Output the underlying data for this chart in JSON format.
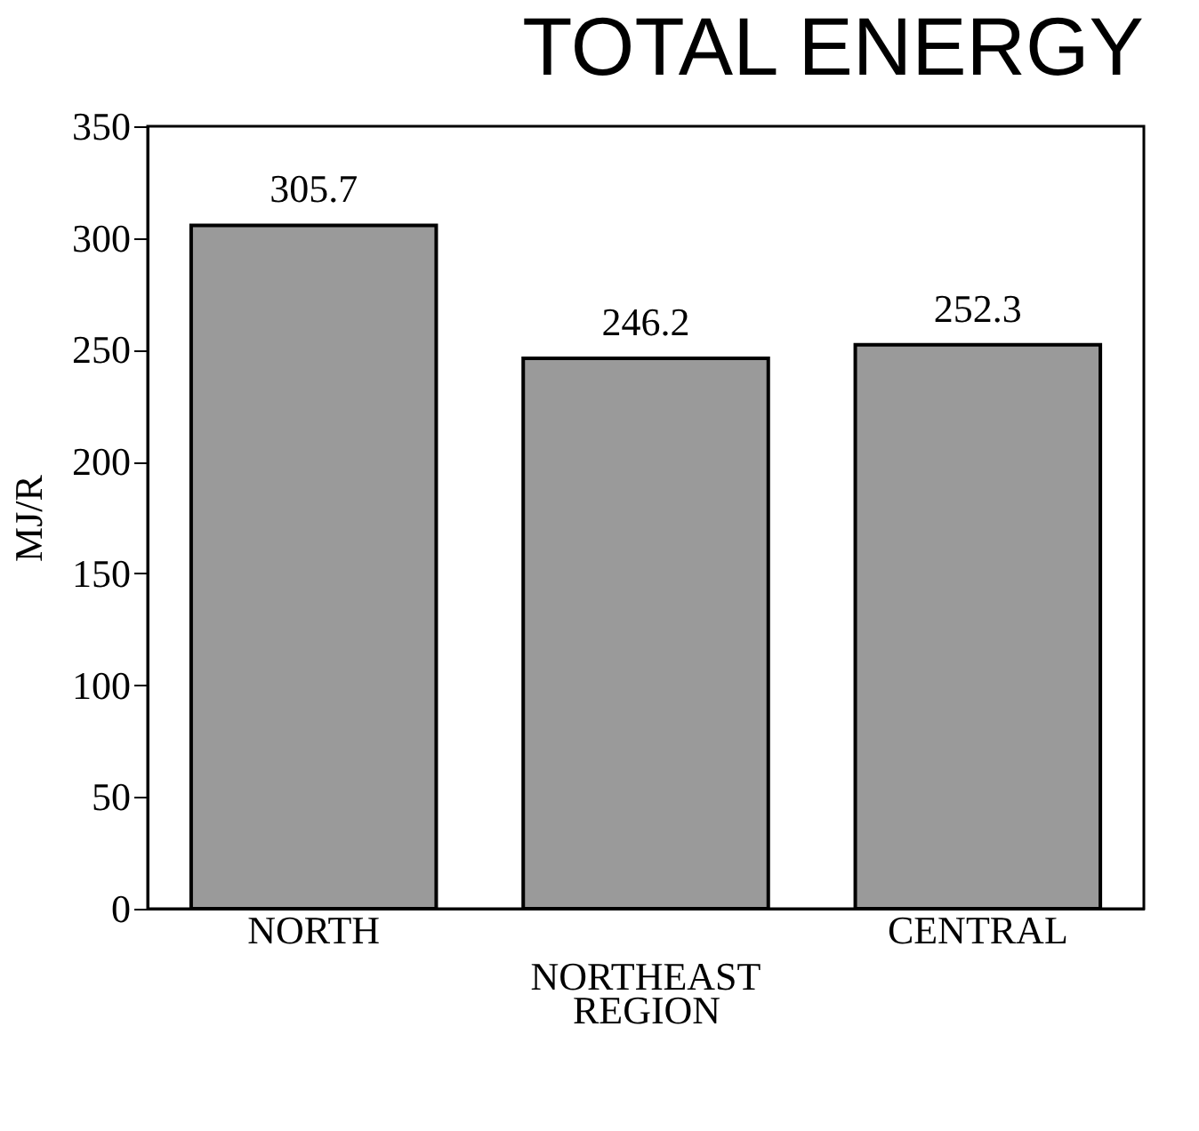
{
  "chart_data": {
    "type": "bar",
    "title": "TOTAL ENERGY",
    "xlabel": "REGION",
    "ylabel": "MJ/R",
    "categories": [
      "NORTH",
      "NORTHEAST",
      "CENTRAL"
    ],
    "values": [
      305.7,
      246.2,
      252.3
    ],
    "color": "#9a9a9a",
    "ylim": [
      0,
      350
    ],
    "yticks": [
      0,
      50,
      100,
      150,
      200,
      250,
      300,
      350
    ],
    "data_labels": true,
    "grid": false
  }
}
